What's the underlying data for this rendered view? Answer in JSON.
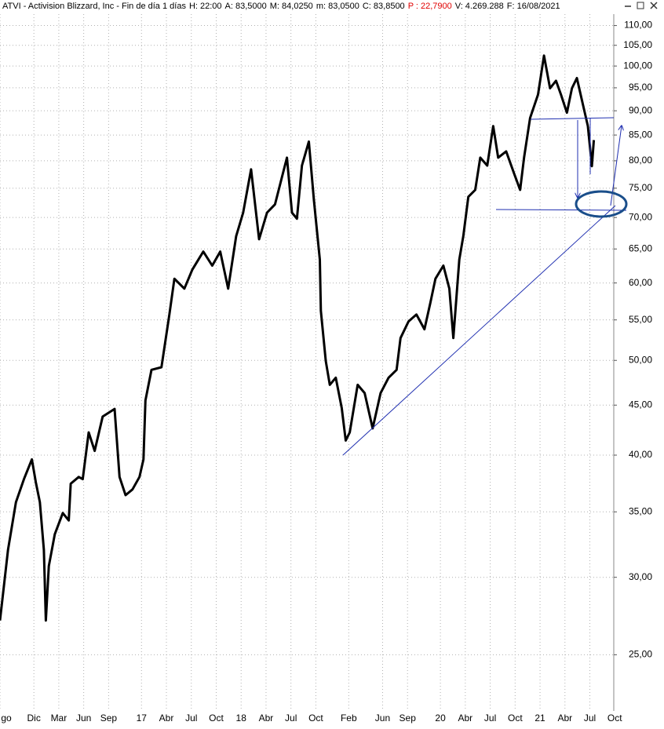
{
  "header": {
    "title": "ATVI - Activision Blizzard, Inc - Fin de día 1 días",
    "fields": [
      "H: 22:00",
      "A: 83,5000",
      "M: 84,0250",
      "m: 83,0500",
      "C: 83,8500"
    ],
    "highlight": "P : 22,7900",
    "highlight_color": "#e00000",
    "fields2": [
      "V: 4.269.288",
      "F: 16/08/2021"
    ]
  },
  "chart_data": {
    "type": "line",
    "log_scale": true,
    "grid": true,
    "x": [
      2015.58,
      2015.66,
      2015.74,
      2015.82,
      2015.9,
      2015.94,
      2015.98,
      2016.02,
      2016.04,
      2016.07,
      2016.13,
      2016.21,
      2016.27,
      2016.29,
      2016.37,
      2016.41,
      2016.47,
      2016.53,
      2016.61,
      2016.73,
      2016.78,
      2016.84,
      2016.91,
      2016.98,
      2017.02,
      2017.04,
      2017.1,
      2017.2,
      2017.28,
      2017.33,
      2017.43,
      2017.51,
      2017.62,
      2017.71,
      2017.79,
      2017.87,
      2017.95,
      2018.02,
      2018.1,
      2018.18,
      2018.26,
      2018.34,
      2018.42,
      2018.46,
      2018.51,
      2018.56,
      2018.61,
      2018.68,
      2018.73,
      2018.79,
      2018.8,
      2018.85,
      2018.89,
      2018.95,
      2019.01,
      2019.05,
      2019.09,
      2019.17,
      2019.24,
      2019.32,
      2019.4,
      2019.48,
      2019.56,
      2019.6,
      2019.68,
      2019.76,
      2019.84,
      2019.9,
      2019.95,
      2020.03,
      2020.09,
      2020.13,
      2020.19,
      2020.23,
      2020.28,
      2020.35,
      2020.4,
      2020.47,
      2020.53,
      2020.58,
      2020.66,
      2020.74,
      2020.8,
      2020.84,
      2020.9,
      2020.98,
      2021.04,
      2021.1,
      2021.16,
      2021.21,
      2021.27,
      2021.32,
      2021.37,
      2021.43,
      2021.48,
      2021.52,
      2021.54
    ],
    "series": [
      {
        "color": "#000000",
        "values": [
          27.1,
          32.0,
          35.8,
          37.8,
          39.6,
          37.5,
          35.8,
          32.0,
          27.1,
          30.8,
          33.2,
          34.9,
          34.3,
          37.4,
          38.0,
          37.8,
          42.2,
          40.4,
          43.8,
          44.6,
          38.0,
          36.4,
          36.9,
          38.0,
          39.6,
          45.5,
          48.9,
          49.2,
          55.7,
          60.6,
          59.2,
          61.9,
          64.6,
          62.5,
          64.6,
          59.2,
          67.0,
          70.8,
          78.4,
          66.5,
          70.8,
          72.2,
          77.7,
          80.6,
          70.8,
          69.8,
          79.1,
          83.7,
          73.0,
          63.4,
          56.2,
          49.9,
          47.2,
          48.0,
          44.7,
          41.4,
          42.2,
          47.2,
          46.3,
          42.6,
          46.3,
          48.0,
          48.9,
          52.7,
          54.8,
          55.7,
          53.8,
          57.3,
          60.6,
          62.5,
          59.2,
          52.7,
          63.4,
          67.0,
          73.5,
          74.7,
          80.6,
          79.1,
          86.8,
          80.6,
          81.8,
          77.6,
          74.7,
          80.6,
          88.5,
          93.5,
          102.5,
          94.9,
          96.6,
          93.5,
          89.6,
          94.9,
          97.2,
          91.4,
          86.8,
          79.0,
          84.0
        ]
      }
    ],
    "xlim": [
      2015.58,
      2021.74
    ],
    "xticks": [
      {
        "value": 2015.58,
        "label": "go"
      },
      {
        "value": 2015.92,
        "label": "Dic"
      },
      {
        "value": 2016.17,
        "label": "Mar"
      },
      {
        "value": 2016.42,
        "label": "Jun"
      },
      {
        "value": 2016.67,
        "label": "Sep"
      },
      {
        "value": 2017.0,
        "label": "17"
      },
      {
        "value": 2017.25,
        "label": "Abr"
      },
      {
        "value": 2017.5,
        "label": "Jul"
      },
      {
        "value": 2017.75,
        "label": "Oct"
      },
      {
        "value": 2018.0,
        "label": "18"
      },
      {
        "value": 2018.25,
        "label": "Abr"
      },
      {
        "value": 2018.5,
        "label": "Jul"
      },
      {
        "value": 2018.75,
        "label": "Oct"
      },
      {
        "value": 2019.08,
        "label": "Feb"
      },
      {
        "value": 2019.42,
        "label": "Jun"
      },
      {
        "value": 2019.67,
        "label": "Sep"
      },
      {
        "value": 2020.0,
        "label": "20"
      },
      {
        "value": 2020.25,
        "label": "Abr"
      },
      {
        "value": 2020.5,
        "label": "Jul"
      },
      {
        "value": 2020.75,
        "label": "Oct"
      },
      {
        "value": 2021.0,
        "label": "21"
      },
      {
        "value": 2021.25,
        "label": "Abr"
      },
      {
        "value": 2021.5,
        "label": "Jul"
      },
      {
        "value": 2021.75,
        "label": "Oct"
      }
    ],
    "ylim": [
      21.9,
      113
    ],
    "yticks": [
      {
        "value": 25,
        "label": "25,00"
      },
      {
        "value": 30,
        "label": "30,00"
      },
      {
        "value": 35,
        "label": "35,00"
      },
      {
        "value": 40,
        "label": "40,00"
      },
      {
        "value": 45,
        "label": "45,00"
      },
      {
        "value": 50,
        "label": "50,00"
      },
      {
        "value": 55,
        "label": "55,00"
      },
      {
        "value": 60,
        "label": "60,00"
      },
      {
        "value": 65,
        "label": "65,00"
      },
      {
        "value": 70,
        "label": "70,00"
      },
      {
        "value": 75,
        "label": "75,00"
      },
      {
        "value": 80,
        "label": "80,00"
      },
      {
        "value": 85,
        "label": "85,00"
      },
      {
        "value": 90,
        "label": "90,00"
      },
      {
        "value": 95,
        "label": "95,00"
      },
      {
        "value": 100,
        "label": "100,00"
      },
      {
        "value": 105,
        "label": "105,00"
      },
      {
        "value": 110,
        "label": "110,00"
      }
    ]
  }
}
